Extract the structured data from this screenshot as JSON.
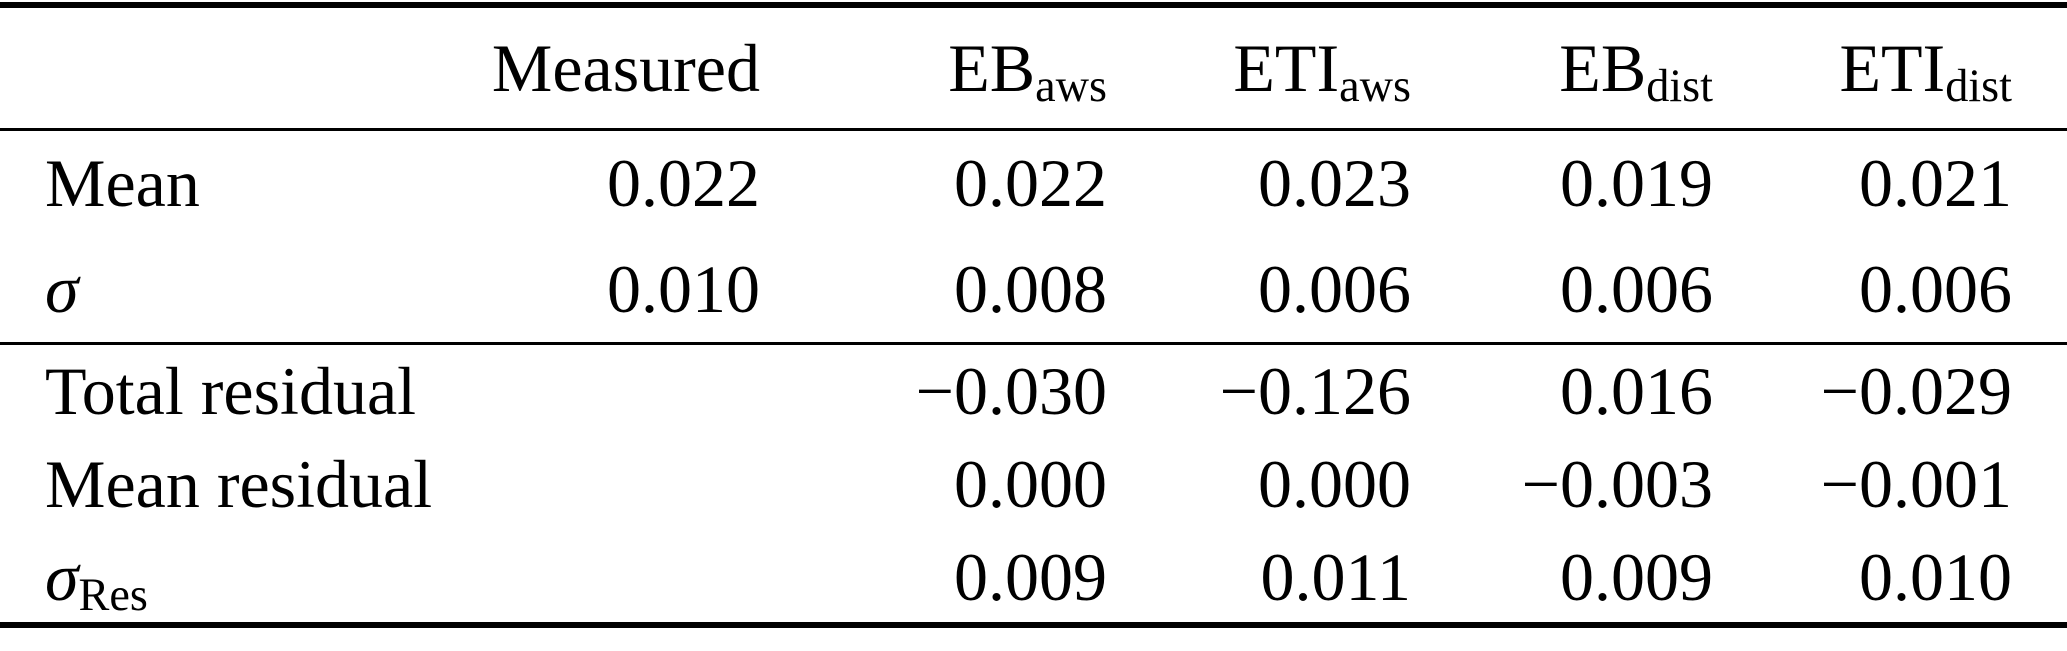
{
  "table": {
    "columns": [
      {
        "base": "",
        "sub": ""
      },
      {
        "base": "Measured",
        "sub": ""
      },
      {
        "base": "EB",
        "sub": "aws"
      },
      {
        "base": "ETI",
        "sub": "aws"
      },
      {
        "base": "EB",
        "sub": "dist"
      },
      {
        "base": "ETI",
        "sub": "dist"
      }
    ],
    "section1": {
      "rows": [
        {
          "label": {
            "base": "Mean",
            "sub": ""
          },
          "values": [
            "0.022",
            "0.022",
            "0.023",
            "0.019",
            "0.021"
          ]
        },
        {
          "label": {
            "base": "σ",
            "sub": ""
          },
          "values": [
            "0.010",
            "0.008",
            "0.006",
            "0.006",
            "0.006"
          ]
        }
      ]
    },
    "section2": {
      "rows": [
        {
          "label": {
            "base": "Total residual",
            "sub": ""
          },
          "values": [
            "",
            "−0.030",
            "−0.126",
            "0.016",
            "−0.029"
          ]
        },
        {
          "label": {
            "base": "Mean residual",
            "sub": ""
          },
          "values": [
            "",
            "0.000",
            "0.000",
            "−0.003",
            "−0.001"
          ]
        },
        {
          "label": {
            "base": "σ",
            "sub": "Res"
          },
          "values": [
            "",
            "0.009",
            "0.011",
            "0.009",
            "0.010"
          ]
        }
      ]
    },
    "colors": {
      "text": "#000000",
      "background": "#ffffff",
      "rule": "#000000"
    }
  }
}
